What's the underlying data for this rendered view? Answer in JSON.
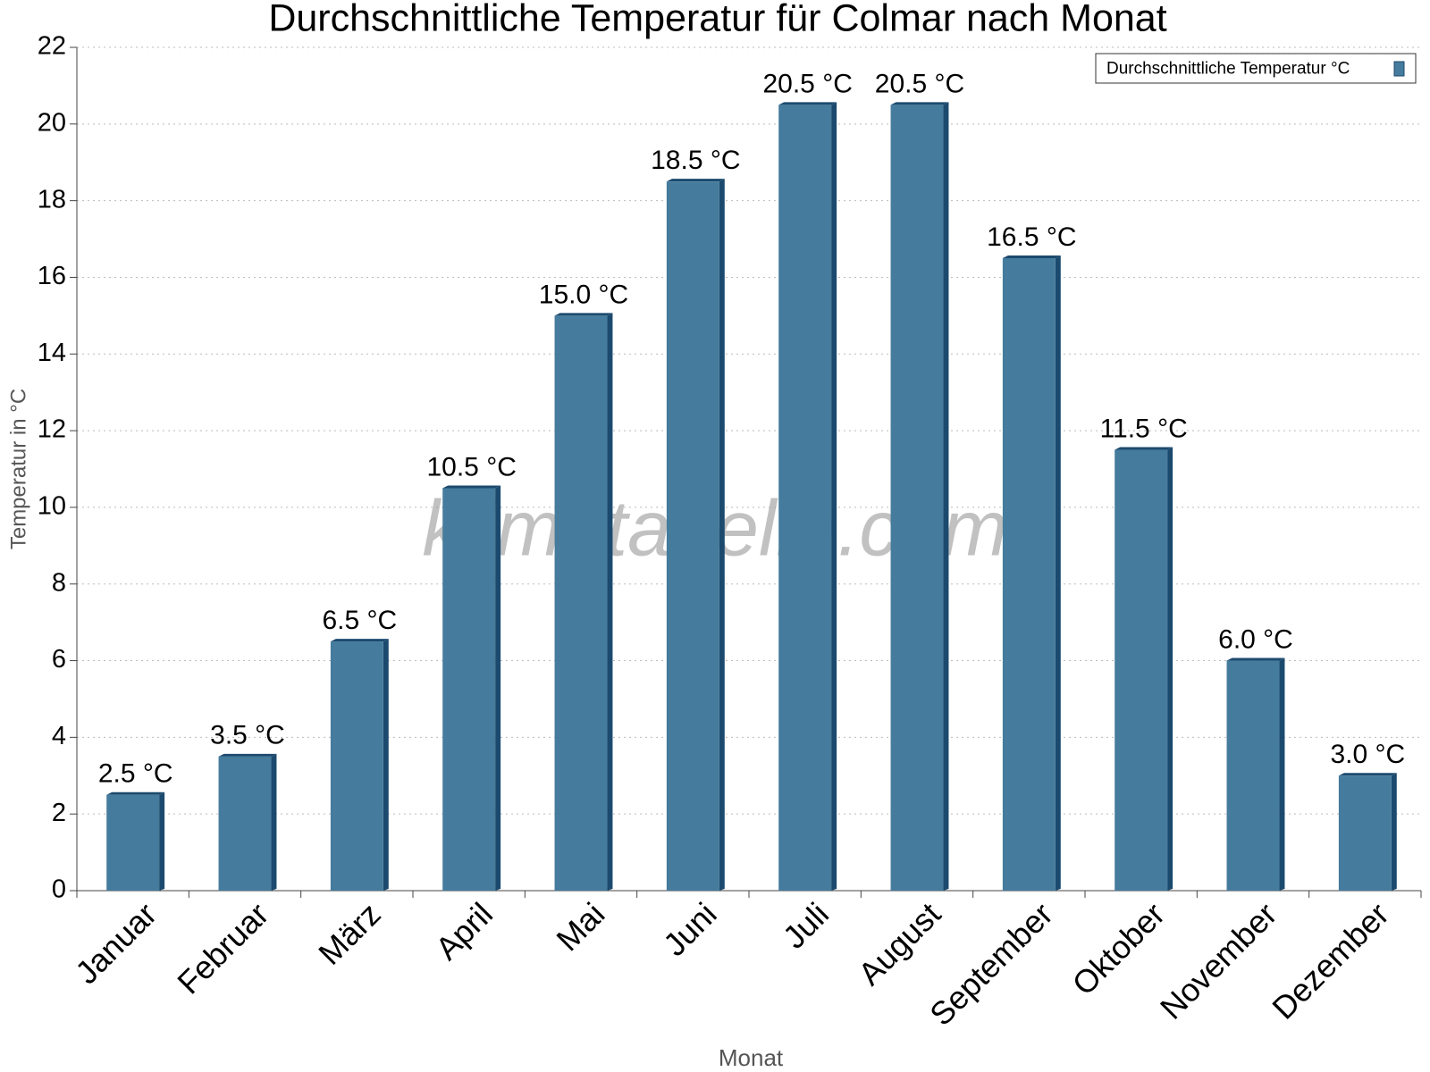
{
  "chart_data": {
    "type": "bar",
    "title": "Durchschnittliche Temperatur für Colmar nach Monat",
    "x_label": "Monat",
    "y_label": "Temperatur in °C",
    "watermark": "klimatabelle.com",
    "categories": [
      "Januar",
      "Februar",
      "März",
      "April",
      "Mai",
      "Juni",
      "Juli",
      "August",
      "September",
      "Oktober",
      "November",
      "Dezember"
    ],
    "series": [
      {
        "name": "Durchschnittliche Temperatur °C",
        "color": "#457b9d",
        "values": [
          2.5,
          3.5,
          6.5,
          10.5,
          15.0,
          18.5,
          20.5,
          20.5,
          16.5,
          11.5,
          6.0,
          3.0
        ],
        "value_labels": [
          "2.5 °C",
          "3.5 °C",
          "6.5 °C",
          "10.5 °C",
          "15.0 °C",
          "18.5 °C",
          "20.5 °C",
          "20.5 °C",
          "16.5 °C",
          "11.5 °C",
          "6.0 °C",
          "3.0 °C"
        ]
      }
    ],
    "ylim": [
      0,
      22
    ],
    "yticks": [
      0,
      2,
      4,
      6,
      8,
      10,
      12,
      14,
      16,
      18,
      20,
      22
    ],
    "grid": true,
    "legend": "top-right"
  }
}
